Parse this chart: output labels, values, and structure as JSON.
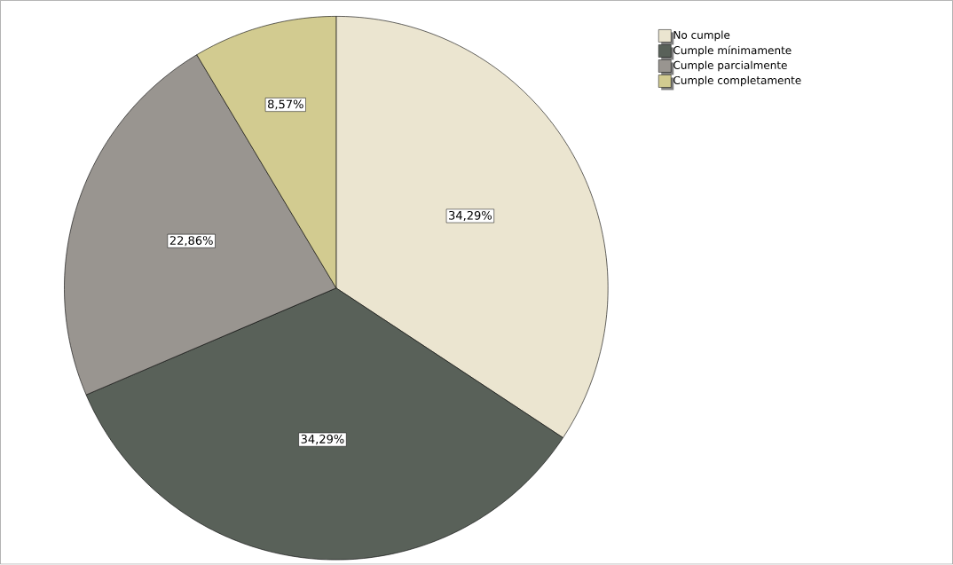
{
  "chart_data": {
    "type": "pie",
    "categories": [
      "No cumple",
      "Cumple mínimamente",
      "Cumple parcialmente",
      "Cumple completamente"
    ],
    "values": [
      34.29,
      34.29,
      22.86,
      8.57
    ],
    "colors": [
      "#ebe5d0",
      "#596159",
      "#999590",
      "#d2cb90"
    ],
    "value_labels": [
      "34,29%",
      "34,29%",
      "22,86%",
      "8,57%"
    ],
    "legend": "top right"
  }
}
